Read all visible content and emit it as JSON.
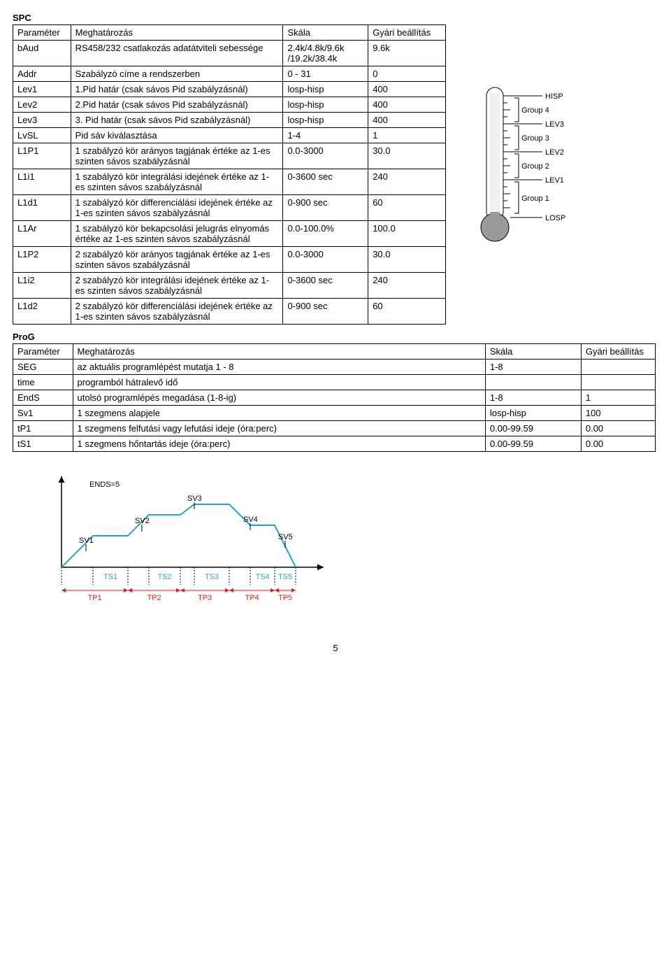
{
  "spc": {
    "title": "SPC",
    "headers": [
      "Paraméter",
      "Meghatározás",
      "Skála",
      "Gyári beállítás"
    ],
    "rows": [
      {
        "p": "bAud",
        "d": "RS458/232 csatlakozás adatátviteli sebessége",
        "s": "2.4k/4.8k/9.6k /19.2k/38.4k",
        "g": "9.6k"
      },
      {
        "p": "Addr",
        "d": "Szabályzó címe a rendszerben",
        "s": "0 - 31",
        "g": "0"
      },
      {
        "p": "Lev1",
        "d": "1.Pid határ (csak sávos Pid szabályzásnál)",
        "s": "losp-hisp",
        "g": "400"
      },
      {
        "p": "Lev2",
        "d": "2.Pid határ (csak sávos Pid szabályzásnál)",
        "s": "losp-hisp",
        "g": "400"
      },
      {
        "p": "Lev3",
        "d": "3. Pid határ (csak sávos Pid szabályzásnál)",
        "s": "losp-hisp",
        "g": "400"
      },
      {
        "p": "LvSL",
        "d": "Pid sáv kiválasztása",
        "s": "1-4",
        "g": "1"
      },
      {
        "p": "L1P1",
        "d": "1 szabályzó kör arányos tagjának értéke az 1-es szinten sávos szabályzásnál",
        "s": "0.0-3000",
        "g": "30.0"
      },
      {
        "p": "L1i1",
        "d": "1 szabályzó kör integrálási idejének értéke az 1-es szinten sávos szabályzásnál",
        "s": "0-3600 sec",
        "g": "240"
      },
      {
        "p": "L1d1",
        "d": "1 szabályzó kör differenciálási idejének értéke az 1-es szinten sávos szabályzásnál",
        "s": "0-900 sec",
        "g": "60"
      },
      {
        "p": "L1Ar",
        "d": "1 szabályzó kör bekapcsolási jelugrás elnyomás értéke az 1-es szinten sávos szabályzásnál",
        "s": "0.0-100.0%",
        "g": "100.0"
      },
      {
        "p": "L1P2",
        "d": "2 szabályzó kör arányos tagjának értéke az 1-es szinten sávos szabályzásnál",
        "s": "0.0-3000",
        "g": "30.0"
      },
      {
        "p": "L1i2",
        "d": "2 szabályzó kör integrálási idejének értéke az 1-es szinten sávos szabályzásnál",
        "s": "0-3600 sec",
        "g": "240"
      },
      {
        "p": "L1d2",
        "d": "2 szabályzó kör differenciálási idejének értéke az 1-es szinten sávos szabályzásnál",
        "s": "0-900 sec",
        "g": "60"
      }
    ]
  },
  "prog": {
    "title": "ProG",
    "headers": [
      "Paraméter",
      "Meghatározás",
      "Skála",
      "Gyári beállítás"
    ],
    "rows": [
      {
        "p": "SEG",
        "d": "az aktuális programlépést mutatja 1 - 8",
        "s": "1-8",
        "g": ""
      },
      {
        "p": "time",
        "d": "programból hátralevő idő",
        "s": "",
        "g": ""
      },
      {
        "p": "EndS",
        "d": "utolsó programlépés megadása (1-8-ig)",
        "s": "1-8",
        "g": "1"
      },
      {
        "p": "Sv1",
        "d": "1 szegmens alapjele",
        "s": "losp-hisp",
        "g": "100"
      },
      {
        "p": "tP1",
        "d": "1 szegmens felfutási vagy lefutási ideje  (óra:perc)",
        "s": "0.00-99.59",
        "g": "0.00"
      },
      {
        "p": "tS1",
        "d": "1 szegmens hőntartás ideje  (óra:perc)",
        "s": "0.00-99.59",
        "g": "0.00"
      }
    ]
  },
  "thermometer": {
    "labels_right": [
      "HISP",
      "Group 4",
      "LEV3",
      "Group 3",
      "LEV2",
      "Group 2",
      "LEV1",
      "Group 1",
      "LOSP"
    ],
    "stroke": "#000000",
    "fill_bulb": "#9a9a9a",
    "tick_color": "#000000",
    "font_size": 11
  },
  "timeline": {
    "title": "ENDS=5",
    "sv_labels": [
      "SV1",
      "SV2",
      "SV3",
      "SV4",
      "SV5"
    ],
    "ts_labels": [
      "TS1",
      "TS2",
      "TS3",
      "TS4",
      "TS5"
    ],
    "tp_labels": [
      "TP1",
      "TP2",
      "TP3",
      "TP4",
      "TP5"
    ],
    "colors": {
      "axis": "#000000",
      "waveform": "#2aa0d8",
      "ts_text": "#2aa0d8",
      "tp_text": "#e01b1b",
      "tp_arrow": "#e01b1b",
      "sv_text": "#000000",
      "ends_text": "#000000"
    },
    "points": [
      [
        20,
        135
      ],
      [
        65,
        90
      ],
      [
        115,
        90
      ],
      [
        145,
        60
      ],
      [
        190,
        60
      ],
      [
        210,
        45
      ],
      [
        260,
        45
      ],
      [
        290,
        75
      ],
      [
        325,
        75
      ],
      [
        355,
        135
      ]
    ],
    "segments_x": [
      20,
      65,
      115,
      145,
      190,
      210,
      260,
      290,
      325,
      355
    ],
    "font_size": 11
  },
  "page_number": "5"
}
